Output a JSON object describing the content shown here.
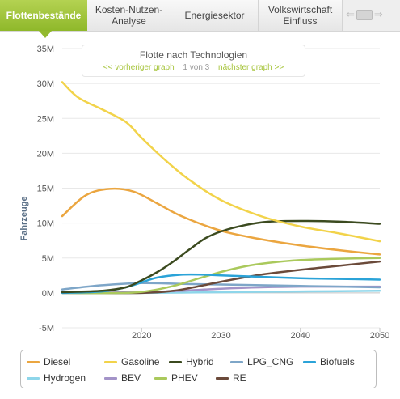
{
  "tabs": [
    {
      "label": "Flottenbestände",
      "active": true
    },
    {
      "label": "Kosten-Nutzen-\nAnalyse",
      "active": false
    },
    {
      "label": "Energiesektor",
      "active": false
    },
    {
      "label": "Volkswirtschaft\nEinfluss",
      "active": false
    }
  ],
  "tab_scroller": {
    "left": "⇐",
    "right": "⇒"
  },
  "chart_header": {
    "title": "Flotte nach Technologien",
    "prev_label": "<< vorheriger graph",
    "page_indicator": "1 von 3",
    "next_label": "nächster graph >>"
  },
  "chart_data": {
    "type": "line",
    "title": "Flotte nach Technologien",
    "xlabel": "",
    "ylabel": "Fahrzeuge",
    "xlim": [
      2010,
      2050
    ],
    "ylim": [
      -5,
      35
    ],
    "x_ticks": [
      2020,
      2030,
      2040,
      2050
    ],
    "y_ticks": [
      -5,
      0,
      5,
      10,
      15,
      20,
      25,
      30,
      35
    ],
    "y_tick_labels": [
      "-5M",
      "0M",
      "5M",
      "10M",
      "15M",
      "20M",
      "25M",
      "30M",
      "35M"
    ],
    "grid": "horizontal",
    "legend_position": "bottom",
    "series": [
      {
        "name": "Diesel",
        "color": "#eba640",
        "x": [
          2010,
          2013,
          2016,
          2019,
          2022,
          2025,
          2030,
          2035,
          2040,
          2045,
          2050
        ],
        "y": [
          11.0,
          14.0,
          14.9,
          14.5,
          12.8,
          11.0,
          8.9,
          7.7,
          6.8,
          6.1,
          5.5
        ]
      },
      {
        "name": "Gasoline",
        "color": "#f2d34a",
        "x": [
          2010,
          2012,
          2015,
          2018,
          2020,
          2023,
          2026,
          2030,
          2035,
          2040,
          2045,
          2050
        ],
        "y": [
          30.2,
          28.0,
          26.3,
          24.5,
          22.2,
          19.0,
          16.2,
          13.3,
          11.0,
          9.5,
          8.5,
          7.4
        ]
      },
      {
        "name": "Hybrid",
        "color": "#3b4a1f",
        "x": [
          2010,
          2015,
          2018,
          2020,
          2022,
          2024,
          2026,
          2028,
          2030,
          2033,
          2036,
          2040,
          2045,
          2050
        ],
        "y": [
          0.1,
          0.3,
          0.8,
          1.8,
          3.0,
          4.5,
          6.2,
          7.8,
          8.8,
          9.7,
          10.2,
          10.3,
          10.2,
          9.9
        ]
      },
      {
        "name": "LPG_CNG",
        "color": "#7ea6c8",
        "x": [
          2010,
          2015,
          2020,
          2025,
          2030,
          2040,
          2050
        ],
        "y": [
          0.5,
          1.1,
          1.4,
          1.3,
          1.2,
          1.0,
          0.8
        ]
      },
      {
        "name": "Biofuels",
        "color": "#2ba3d8",
        "x": [
          2010,
          2015,
          2018,
          2020,
          2022,
          2025,
          2028,
          2030,
          2035,
          2040,
          2045,
          2050
        ],
        "y": [
          0.0,
          0.2,
          0.8,
          1.5,
          2.2,
          2.6,
          2.6,
          2.5,
          2.3,
          2.1,
          2.0,
          1.9
        ]
      },
      {
        "name": "Hydrogen",
        "color": "#8ed6ea",
        "x": [
          2010,
          2020,
          2030,
          2040,
          2050
        ],
        "y": [
          0.0,
          0.0,
          0.1,
          0.2,
          0.3
        ]
      },
      {
        "name": "BEV",
        "color": "#a393c8",
        "x": [
          2010,
          2020,
          2025,
          2030,
          2035,
          2040,
          2045,
          2050
        ],
        "y": [
          0.0,
          0.1,
          0.3,
          0.6,
          0.8,
          0.9,
          0.9,
          0.9
        ]
      },
      {
        "name": "PHEV",
        "color": "#aac95c",
        "x": [
          2010,
          2018,
          2021,
          2024,
          2027,
          2030,
          2033,
          2036,
          2040,
          2045,
          2050
        ],
        "y": [
          0.0,
          0.0,
          0.3,
          1.0,
          2.0,
          3.0,
          3.8,
          4.3,
          4.7,
          4.9,
          5.0
        ]
      },
      {
        "name": "RE",
        "color": "#6b4a3a",
        "x": [
          2010,
          2020,
          2024,
          2027,
          2030,
          2035,
          2040,
          2045,
          2050
        ],
        "y": [
          0.0,
          0.0,
          0.3,
          0.9,
          1.6,
          2.6,
          3.3,
          3.9,
          4.5
        ]
      }
    ]
  }
}
